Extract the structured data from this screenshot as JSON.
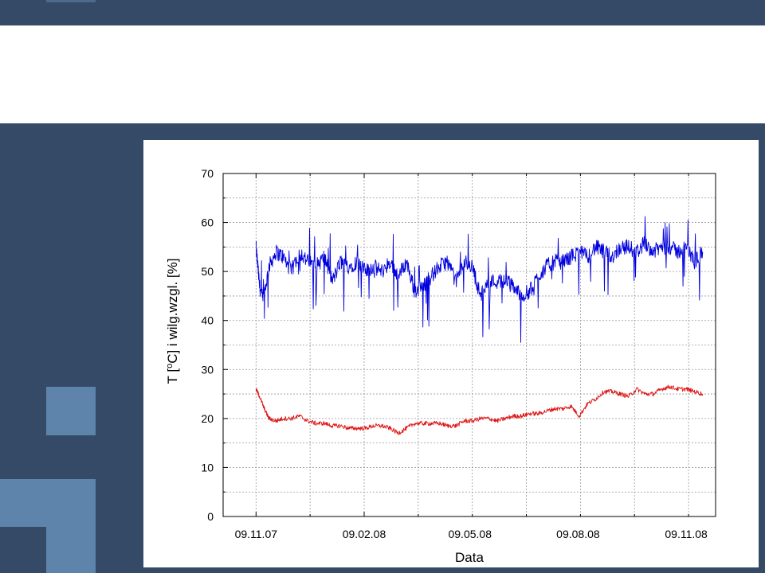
{
  "chart_data": {
    "type": "line",
    "xlabel": "Data",
    "ylabel": "T [°C] i wilg.wzgl. [%]",
    "ylabel_parts": {
      "prefix": "T [",
      "degree": "o",
      "suffix": "C] i wilg.wzgl. [%]"
    },
    "ylim": [
      0,
      70
    ],
    "yticks": [
      "0",
      "10",
      "20",
      "30",
      "40",
      "50",
      "60",
      "70"
    ],
    "xticks": [
      {
        "label": "09.11.07",
        "date": "2007-11-09"
      },
      {
        "label": "09.02.08",
        "date": "2008-02-09"
      },
      {
        "label": "09.05.08",
        "date": "2008-05-09"
      },
      {
        "label": "09.08.08",
        "date": "2008-08-09"
      },
      {
        "label": "09.11.08",
        "date": "2008-11-09"
      }
    ],
    "xlim": [
      "2007-10-12",
      "2008-12-04"
    ],
    "grid": true,
    "series": [
      {
        "color": "#0000dd",
        "x": [
          "2007-11-09",
          "2007-11-12",
          "2007-11-15",
          "2007-11-20",
          "2007-11-26",
          "2007-12-02",
          "2007-12-09",
          "2007-12-16",
          "2007-12-23",
          "2007-12-30",
          "2008-01-06",
          "2008-01-13",
          "2008-01-20",
          "2008-01-27",
          "2008-02-03",
          "2008-02-10",
          "2008-02-17",
          "2008-02-24",
          "2008-03-02",
          "2008-03-09",
          "2008-03-16",
          "2008-03-23",
          "2008-03-30",
          "2008-04-06",
          "2008-04-13",
          "2008-04-20",
          "2008-04-27",
          "2008-05-04",
          "2008-05-11",
          "2008-05-18",
          "2008-05-25",
          "2008-06-01",
          "2008-06-08",
          "2008-06-15",
          "2008-06-22",
          "2008-06-29",
          "2008-07-06",
          "2008-07-13",
          "2008-07-20",
          "2008-07-27",
          "2008-08-03",
          "2008-08-10",
          "2008-08-17",
          "2008-08-24",
          "2008-08-31",
          "2008-09-07",
          "2008-09-14",
          "2008-09-21",
          "2008-09-28",
          "2008-10-05",
          "2008-10-12",
          "2008-10-19",
          "2008-10-26",
          "2008-11-02",
          "2008-11-09",
          "2008-11-16",
          "2008-11-23"
        ],
        "y": [
          55,
          47,
          44,
          51,
          54,
          53,
          50,
          54,
          52,
          51,
          53,
          48,
          52,
          51,
          52,
          50,
          51,
          50,
          52,
          49,
          52,
          46,
          47,
          49,
          51,
          52,
          48,
          52,
          51,
          45,
          48,
          48,
          48,
          47,
          45,
          46,
          49,
          51,
          52,
          52,
          53,
          54,
          53,
          55,
          54,
          53,
          55,
          55,
          54,
          56,
          54,
          55,
          55,
          54,
          55,
          52,
          54
        ]
      },
      {
        "color": "#dd1111",
        "x": [
          "2007-11-09",
          "2007-11-12",
          "2007-11-16",
          "2007-11-20",
          "2007-11-26",
          "2007-12-02",
          "2007-12-09",
          "2007-12-16",
          "2007-12-23",
          "2007-12-30",
          "2008-01-06",
          "2008-01-13",
          "2008-01-20",
          "2008-01-27",
          "2008-02-03",
          "2008-02-10",
          "2008-02-17",
          "2008-02-24",
          "2008-03-02",
          "2008-03-09",
          "2008-03-16",
          "2008-03-23",
          "2008-03-30",
          "2008-04-06",
          "2008-04-13",
          "2008-04-20",
          "2008-04-27",
          "2008-05-04",
          "2008-05-11",
          "2008-05-18",
          "2008-05-25",
          "2008-06-01",
          "2008-06-08",
          "2008-06-15",
          "2008-06-22",
          "2008-06-29",
          "2008-07-06",
          "2008-07-13",
          "2008-07-20",
          "2008-07-27",
          "2008-08-03",
          "2008-08-10",
          "2008-08-17",
          "2008-08-24",
          "2008-08-31",
          "2008-09-07",
          "2008-09-14",
          "2008-09-21",
          "2008-09-28",
          "2008-10-05",
          "2008-10-12",
          "2008-10-19",
          "2008-10-26",
          "2008-11-02",
          "2008-11-09",
          "2008-11-16",
          "2008-11-23"
        ],
        "y": [
          26,
          24.5,
          22,
          20,
          19.5,
          20,
          20,
          20.5,
          19.5,
          19,
          19,
          18.5,
          18.5,
          18,
          18,
          18,
          18.5,
          18.5,
          18,
          17,
          18,
          19,
          19,
          19,
          19,
          18.5,
          18.5,
          19.5,
          19.5,
          20,
          20,
          19.5,
          20,
          20.5,
          20.5,
          21,
          21,
          21.5,
          22,
          22,
          22.5,
          20.5,
          23,
          24,
          25.5,
          25.5,
          25,
          24.5,
          26,
          25,
          25,
          26,
          26.5,
          26,
          26,
          25.5,
          25
        ]
      }
    ]
  }
}
